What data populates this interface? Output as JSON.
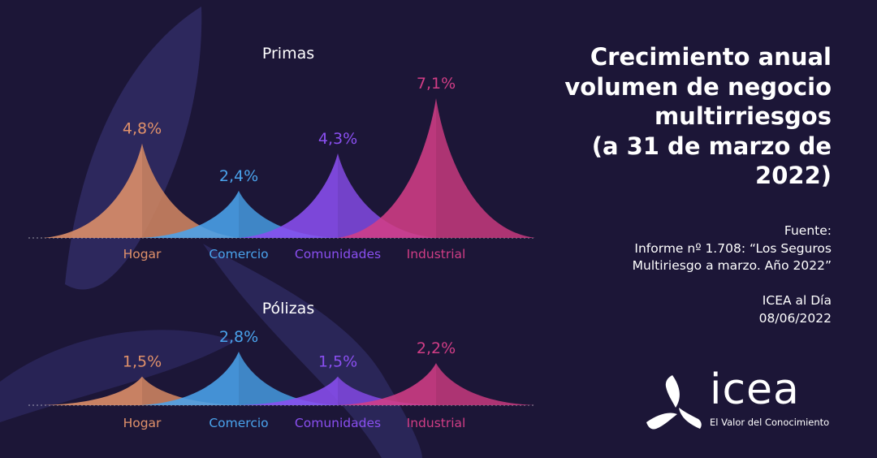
{
  "headline": {
    "lines": [
      "Crecimiento anual",
      "volumen de negocio",
      "multirriesgos",
      "(a 31 de marzo de",
      "2022)"
    ]
  },
  "source": {
    "lines": [
      "Fuente:",
      "Informe nº 1.708: “Los Seguros",
      "Multiriesgo a marzo. Año 2022”"
    ]
  },
  "issue": {
    "lines": [
      "ICEA al Día",
      "08/06/2022"
    ]
  },
  "logo": {
    "word": "icea",
    "tagline": "El Valor del Conocimiento"
  },
  "colors": {
    "background": "#1c1637",
    "hogar": "#e0916a",
    "comercio": "#4aa3ec",
    "comunidades": "#8a4ff0",
    "industrial": "#d13d86"
  },
  "chart_data": [
    {
      "type": "area",
      "title": "Primas",
      "categories": [
        "Hogar",
        "Comercio",
        "Comunidades",
        "Industrial"
      ],
      "values": [
        4.8,
        2.4,
        4.3,
        7.1
      ],
      "labels": [
        "4,8%",
        "2,4%",
        "4,3%",
        "7,1%"
      ],
      "ylim": [
        0,
        7.1
      ]
    },
    {
      "type": "area",
      "title": "Pólizas",
      "categories": [
        "Hogar",
        "Comercio",
        "Comunidades",
        "Industrial"
      ],
      "values": [
        1.5,
        2.8,
        1.5,
        2.2
      ],
      "labels": [
        "1,5%",
        "2,8%",
        "1,5%",
        "2,2%"
      ],
      "ylim": [
        0,
        2.8
      ]
    }
  ]
}
